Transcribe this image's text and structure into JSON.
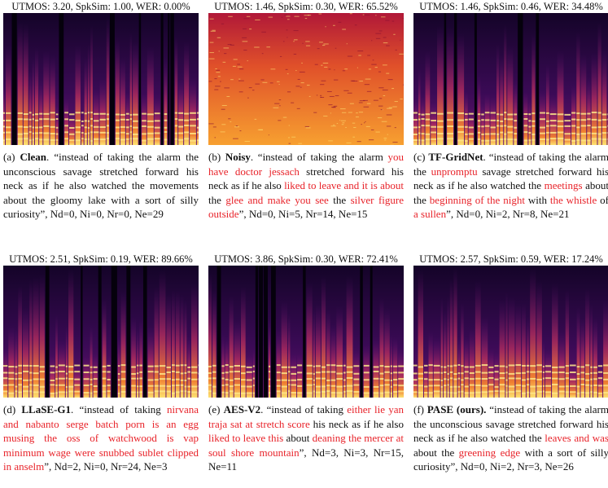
{
  "panels": [
    {
      "header": "UTMOS: 3.20, SpkSim: 1.00, WER: 0.00%",
      "label": "(a) ",
      "name": "Clean",
      "caption": [
        {
          "text": ". “instead of taking the alarm the unconscious savage stretched forward his neck as if he also watched the movements about the gloomy lake with a sort of silly curiosity”, Nd=0, Ni=0, Nr=0, Ne=29"
        }
      ]
    },
    {
      "header": "UTMOS: 1.46, SpkSim: 0.30, WER: 65.52%",
      "label": "(b) ",
      "name": "Noisy",
      "caption": [
        {
          "text": ". “instead of taking the alarm "
        },
        {
          "text": "you have doctor jessach",
          "red": true
        },
        {
          "text": " stretched forward his neck as if he also "
        },
        {
          "text": "liked to leave and it is about",
          "red": true
        },
        {
          "text": " the "
        },
        {
          "text": "glee and make you see",
          "red": true
        },
        {
          "text": " the "
        },
        {
          "text": "silver figure outside",
          "red": true
        },
        {
          "text": "”, Nd=0, Ni=5, Nr=14, Ne=15"
        }
      ]
    },
    {
      "header": "UTMOS: 1.46, SpkSim: 0.46, WER: 34.48%",
      "label": "(c) ",
      "name": "TF-GridNet",
      "caption": [
        {
          "text": ". “instead of taking the alarm the "
        },
        {
          "text": "unpromptu",
          "red": true
        },
        {
          "text": " savage stretched forward his neck as if he also watched the "
        },
        {
          "text": "meetings",
          "red": true
        },
        {
          "text": " about the "
        },
        {
          "text": "beginning of the night",
          "red": true
        },
        {
          "text": " with "
        },
        {
          "text": "the whistle",
          "red": true
        },
        {
          "text": " of "
        },
        {
          "text": "a sullen",
          "red": true
        },
        {
          "text": "”, Nd=0, Ni=2, Nr=8, Ne=21"
        }
      ]
    },
    {
      "header": "UTMOS: 2.51, SpkSim: 0.19, WER: 89.66%",
      "label": "(d) ",
      "name": "LLaSE-G1",
      "caption": [
        {
          "text": ". “instead of taking "
        },
        {
          "text": "nirvana and nabanto serge batch porn is an egg musing the oss of watchwood is vap minimum wage were snubbed sublet clipped in anselm",
          "red": true
        },
        {
          "text": "”, Nd=2, Ni=0, Nr=24, Ne=3"
        }
      ]
    },
    {
      "header": "UTMOS: 3.86, SpkSim: 0.30, WER: 72.41%",
      "label": "(e) ",
      "name": "AES-V2",
      "caption": [
        {
          "text": ". “instead of taking "
        },
        {
          "text": "either lie yan traja sat at stretch score",
          "red": true
        },
        {
          "text": " his neck as if he also "
        },
        {
          "text": "liked to leave this",
          "red": true
        },
        {
          "text": " about "
        },
        {
          "text": "deaning the mercer at soul shore mountain",
          "red": true
        },
        {
          "text": "”, Nd=3, Ni=3, Nr=15, Ne=11"
        }
      ]
    },
    {
      "header": "UTMOS: 2.57, SpkSim: 0.59, WER: 17.24%",
      "label": "(f) ",
      "name": "PASE (ours).",
      "caption": [
        {
          "text": " “instead of taking the alarm the unconscious savage stretched forward his neck as if he also watched the "
        },
        {
          "text": "leaves and was",
          "red": true
        },
        {
          "text": " about the "
        },
        {
          "text": "greening edge",
          "red": true
        },
        {
          "text": " with a sort of silly curiosity”, Nd=0, Ni=2, Nr=3, Ne=26"
        }
      ]
    }
  ]
}
